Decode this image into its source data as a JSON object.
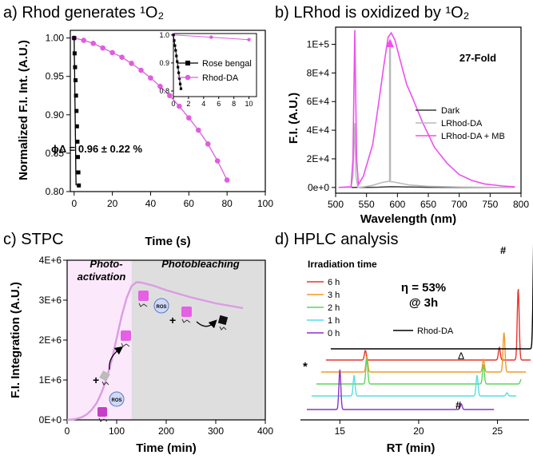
{
  "colors": {
    "rose_bengal": "#000000",
    "rhod_da": "#e05ce0",
    "dark": "#3a3a3a",
    "lrhod_da": "#b8b8b8",
    "lrhod_da_mb": "#ee4fee",
    "photoactivation_bg": "#fbe9fb",
    "photobleaching_bg": "#dedede",
    "stpc_curve": "#dc9be4",
    "hplc_6h": "#e8332c",
    "hplc_3h": "#f39a25",
    "hplc_2h": "#5fd35f",
    "hplc_1h": "#55dde4",
    "hplc_0h": "#8a34c7",
    "hplc_rhod_da": "#000000"
  },
  "panels": {
    "a": {
      "title": "a) Rhod generates ¹O₂",
      "annotation": "ϕΔ = 0.96 ± 0.22 %"
    },
    "b": {
      "title": "b) LRhod is oxidized by ¹O₂",
      "annotation": "27-Fold"
    },
    "c": {
      "title": "c) STPC",
      "region1": "Photo-activation",
      "region1_line1": "Photo-",
      "region1_line2": "activation",
      "region2": "Photobleaching",
      "ros_label": "ROS",
      "plus": "+"
    },
    "d": {
      "title": "d) HPLC analysis",
      "legend_title": "Irradiation time",
      "eta_line1": "η = 53%",
      "eta_line2": "@ 3h",
      "mark_hash": "#",
      "mark_delta": "Δ",
      "mark_star": "*"
    }
  },
  "chart_data": [
    {
      "id": "a",
      "type": "line",
      "title": "a) Rhod generates ¹O₂",
      "xlabel": "Time (s)",
      "ylabel": "Normalized F.I. Int. (A.U.)",
      "xlim": [
        -2,
        100
      ],
      "ylim": [
        0.8,
        1.01
      ],
      "xticks": [
        0,
        20,
        40,
        60,
        80,
        100
      ],
      "yticks": [
        0.8,
        0.85,
        0.9,
        0.95,
        1.0
      ],
      "xtick_labels": [
        "0",
        "20",
        "40",
        "60",
        "80",
        "100"
      ],
      "ytick_labels": [
        "0.80",
        "0.85",
        "0.90",
        "0.95",
        "1.00"
      ],
      "legend": "inset",
      "series": [
        {
          "name": "Rose bengal",
          "marker": "square",
          "x": [
            0,
            0.1,
            0.2,
            0.3,
            0.4,
            0.5,
            0.6,
            0.7,
            0.8,
            0.9,
            1.0
          ],
          "y": [
            1.0,
            0.98,
            0.962,
            0.945,
            0.925,
            0.905,
            0.885,
            0.865,
            0.845,
            0.825,
            0.808
          ]
        },
        {
          "name": "Rhod-DA",
          "marker": "circle",
          "x": [
            0,
            5,
            10,
            15,
            20,
            25,
            30,
            35,
            40,
            45,
            50,
            55,
            60,
            65,
            70,
            75,
            80
          ],
          "y": [
            1.0,
            0.997,
            0.993,
            0.987,
            0.981,
            0.975,
            0.967,
            0.958,
            0.948,
            0.937,
            0.925,
            0.911,
            0.896,
            0.88,
            0.862,
            0.84,
            0.815
          ]
        }
      ],
      "inset": {
        "xlim": [
          0,
          11
        ],
        "ylim": [
          0.8,
          1.0
        ],
        "xticks": [
          0,
          2,
          4,
          6,
          8,
          10
        ],
        "yticks": [
          0.8,
          0.9,
          1.0
        ],
        "xtick_labels": [
          "0",
          "2",
          "4",
          "6",
          "8",
          "10"
        ],
        "ytick_labels": [
          "0.8",
          "0.9",
          "1.0"
        ],
        "series": [
          {
            "name": "Rose bengal",
            "x": [
              0,
              0.1,
              0.2,
              0.3,
              0.4,
              0.5,
              0.6,
              0.7,
              0.8,
              0.9,
              1.0
            ],
            "y": [
              1.0,
              0.98,
              0.962,
              0.945,
              0.925,
              0.905,
              0.885,
              0.865,
              0.845,
              0.825,
              0.808
            ]
          },
          {
            "name": "Rhod-DA",
            "x": [
              0,
              5,
              10
            ],
            "y": [
              1.0,
              0.992,
              0.983
            ]
          }
        ]
      }
    },
    {
      "id": "b",
      "type": "line",
      "title": "b) LRhod is oxidized by ¹O₂",
      "xlabel": "Wavelength (nm)",
      "ylabel": "F.I. (A.U.)",
      "xlim": [
        500,
        800
      ],
      "ylim": [
        -4000,
        112000
      ],
      "xticks": [
        500,
        550,
        600,
        650,
        700,
        750,
        800
      ],
      "yticks": [
        0,
        20000,
        40000,
        60000,
        80000,
        100000
      ],
      "xtick_labels": [
        "500",
        "550",
        "600",
        "650",
        "700",
        "750",
        "800"
      ],
      "ytick_labels": [
        "0e+0",
        "2E+4",
        "4E+4",
        "6E+4",
        "8E+4",
        "1E+5"
      ],
      "legend": "center-right",
      "series": [
        {
          "name": "Dark",
          "x": [
            505,
            525,
            530,
            535,
            550,
            570,
            580,
            590,
            600,
            620,
            650,
            700,
            750,
            790
          ],
          "y": [
            0,
            0,
            0,
            0,
            0,
            200,
            400,
            500,
            450,
            300,
            150,
            80,
            30,
            10
          ]
        },
        {
          "name": "LRhod-DA",
          "x": [
            505,
            525,
            528,
            531,
            533,
            536,
            545,
            560,
            575,
            585,
            592,
            600,
            620,
            650,
            700,
            750,
            790
          ],
          "y": [
            0,
            0,
            8000,
            45000,
            8000,
            0,
            400,
            1500,
            3500,
            4200,
            4000,
            3300,
            1700,
            800,
            300,
            100,
            30
          ]
        },
        {
          "name": "LRhod-DA + MB",
          "x": [
            505,
            525,
            528,
            530,
            531,
            532,
            534,
            537,
            545,
            560,
            570,
            578,
            585,
            590,
            596,
            605,
            615,
            625,
            640,
            660,
            680,
            700,
            720,
            740,
            770,
            790
          ],
          "y": [
            0,
            500,
            20000,
            80000,
            110000,
            80000,
            20000,
            2000,
            8000,
            30000,
            60000,
            85000,
            105000,
            108000,
            103000,
            88000,
            72000,
            62000,
            46000,
            28000,
            17000,
            9000,
            5000,
            2500,
            1000,
            400
          ]
        }
      ]
    },
    {
      "id": "c",
      "type": "line",
      "title": "c) STPC",
      "xlabel": "Time (min)",
      "ylabel": "F.I. Integration (A.U.)",
      "xlim": [
        0,
        400
      ],
      "ylim": [
        0,
        4000000
      ],
      "xticks": [
        0,
        100,
        200,
        300,
        400
      ],
      "yticks": [
        0,
        1000000,
        2000000,
        3000000,
        4000000
      ],
      "xtick_labels": [
        "0",
        "100",
        "200",
        "300",
        "400"
      ],
      "ytick_labels": [
        "0E+0",
        "1E+6",
        "2E+6",
        "3E+6",
        "4E+6"
      ],
      "regions": [
        {
          "label": "Photo-activation",
          "x0": 0,
          "x1": 130
        },
        {
          "label": "Photobleaching",
          "x0": 130,
          "x1": 400
        }
      ],
      "series": [
        {
          "name": "",
          "x": [
            0,
            10,
            20,
            30,
            40,
            50,
            60,
            70,
            80,
            90,
            100,
            110,
            120,
            130,
            140,
            150,
            175,
            200,
            250,
            300,
            355
          ],
          "y": [
            0,
            10000,
            30000,
            70000,
            140000,
            260000,
            430000,
            700000,
            1050000,
            1500000,
            2050000,
            2600000,
            3050000,
            3350000,
            3450000,
            3440000,
            3360000,
            3250000,
            3070000,
            2920000,
            2800000
          ]
        }
      ]
    },
    {
      "id": "d",
      "type": "line",
      "title": "d) HPLC analysis",
      "xlabel": "RT (min)",
      "xlim": [
        12.5,
        27
      ],
      "xticks": [
        15,
        20,
        25
      ],
      "xtick_labels": [
        "15",
        "20",
        "25"
      ],
      "legend": "top-left",
      "legend_title": "Irradiation time",
      "series": [
        {
          "name": "6 h",
          "offset": 5,
          "peaks": [
            [
              15.4,
              0.6
            ],
            [
              23.9,
              0.8
            ],
            [
              25.1,
              4.5
            ]
          ]
        },
        {
          "name": "3 h",
          "offset": 4,
          "peaks": [
            [
              15.8,
              1.0
            ],
            [
              23.2,
              0.8
            ],
            [
              24.5,
              2.5
            ]
          ]
        },
        {
          "name": "2 h",
          "offset": 3,
          "peaks": [
            [
              16.1,
              1.6
            ],
            [
              23.5,
              1.2
            ],
            [
              25.9,
              0.3
            ]
          ]
        },
        {
          "name": "1 h",
          "offset": 2,
          "peaks": [
            [
              15.6,
              1.3
            ],
            [
              23.4,
              1.3
            ],
            [
              25.3,
              0.2
            ]
          ]
        },
        {
          "name": "0 h",
          "offset": 1,
          "peaks": [
            [
              15.0,
              2.5
            ],
            [
              22.7,
              0.35
            ]
          ]
        },
        {
          "name": "Rhod-DA",
          "offset": 6,
          "peaks": [
            [
              25.8,
              7.5
            ]
          ]
        }
      ]
    }
  ]
}
